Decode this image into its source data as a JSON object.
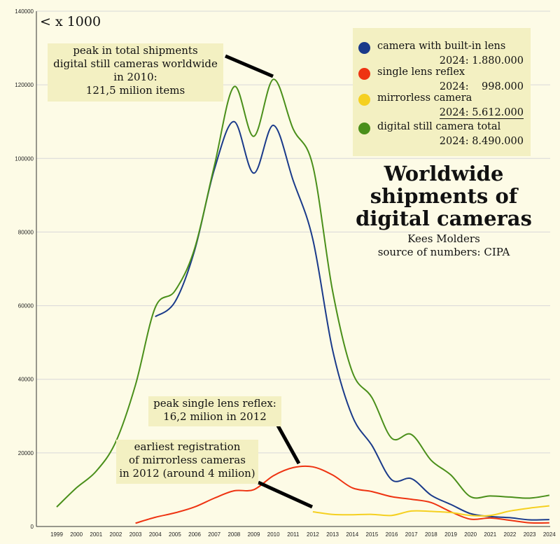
{
  "chart_data": {
    "type": "line",
    "title": "Worldwide shipments of digital cameras",
    "author": "Kees Molders",
    "source": "source of numbers: CIPA",
    "unit_label": "< x 1000",
    "xlabel": "",
    "ylabel": "",
    "ylim": [
      0,
      140000
    ],
    "yticks": [
      0,
      20000,
      40000,
      60000,
      80000,
      100000,
      120000,
      140000
    ],
    "x": [
      1999,
      2000,
      2001,
      2002,
      2003,
      2004,
      2005,
      2006,
      2007,
      2008,
      2009,
      2010,
      2011,
      2012,
      2013,
      2014,
      2015,
      2016,
      2017,
      2018,
      2019,
      2020,
      2021,
      2022,
      2023,
      2024
    ],
    "grid": true,
    "series": [
      {
        "name": "camera with built-in lens",
        "color": "#1a3a8a",
        "values": [
          null,
          null,
          null,
          null,
          null,
          57000,
          61000,
          75000,
          97000,
          110000,
          96000,
          109000,
          94000,
          78000,
          48000,
          30000,
          22000,
          12700,
          13000,
          8500,
          6000,
          3500,
          2700,
          2400,
          1800,
          1880
        ]
      },
      {
        "name": "single lens reflex",
        "color": "#ee3311",
        "values": [
          null,
          null,
          null,
          null,
          900,
          2500,
          3700,
          5300,
          7700,
          9700,
          10000,
          13800,
          16000,
          16200,
          14000,
          10500,
          9500,
          8100,
          7400,
          6500,
          4000,
          2000,
          2300,
          1700,
          1000,
          998
        ]
      },
      {
        "name": "mirrorless camera",
        "color": "#f5d020",
        "values": [
          null,
          null,
          null,
          null,
          null,
          null,
          null,
          null,
          null,
          null,
          null,
          null,
          null,
          4000,
          3300,
          3200,
          3300,
          3000,
          4200,
          4100,
          3800,
          3000,
          3000,
          4200,
          5000,
          5612
        ]
      },
      {
        "name": "digital still camera total",
        "color": "#4a8f1a",
        "values": [
          5300,
          10500,
          15000,
          23000,
          38500,
          59500,
          64000,
          75500,
          98000,
          119500,
          106000,
          121500,
          108000,
          98000,
          64000,
          42000,
          35000,
          24000,
          25000,
          18000,
          14000,
          8100,
          8300,
          8000,
          7700,
          8490
        ]
      }
    ],
    "legend": {
      "position": "top-right",
      "entries": [
        {
          "label": "camera with built-in lens",
          "value_text": "2024: 1.880.000",
          "color": "#1a3a8a"
        },
        {
          "label": "single lens reflex",
          "value_text": "2024:    998.000",
          "color": "#ee3311"
        },
        {
          "label": "mirrorless camera",
          "value_text": "2024: 5.612.000",
          "color": "#f5d020"
        },
        {
          "label": "digital still camera total",
          "value_text": "2024: 8.490.000",
          "color": "#4a8f1a"
        }
      ]
    },
    "annotations": [
      {
        "id": "peak-total",
        "lines": [
          "peak in total shipments",
          "digital still cameras worldwide",
          "in 2010:",
          "121,5 milion items"
        ]
      },
      {
        "id": "peak-slr",
        "lines": [
          "peak single lens reflex:",
          "16,2 milion in 2012"
        ]
      },
      {
        "id": "mirrorless-start",
        "lines": [
          "earliest registration",
          "of mirrorless cameras",
          "in 2012 (around 4 milion)"
        ]
      }
    ]
  }
}
